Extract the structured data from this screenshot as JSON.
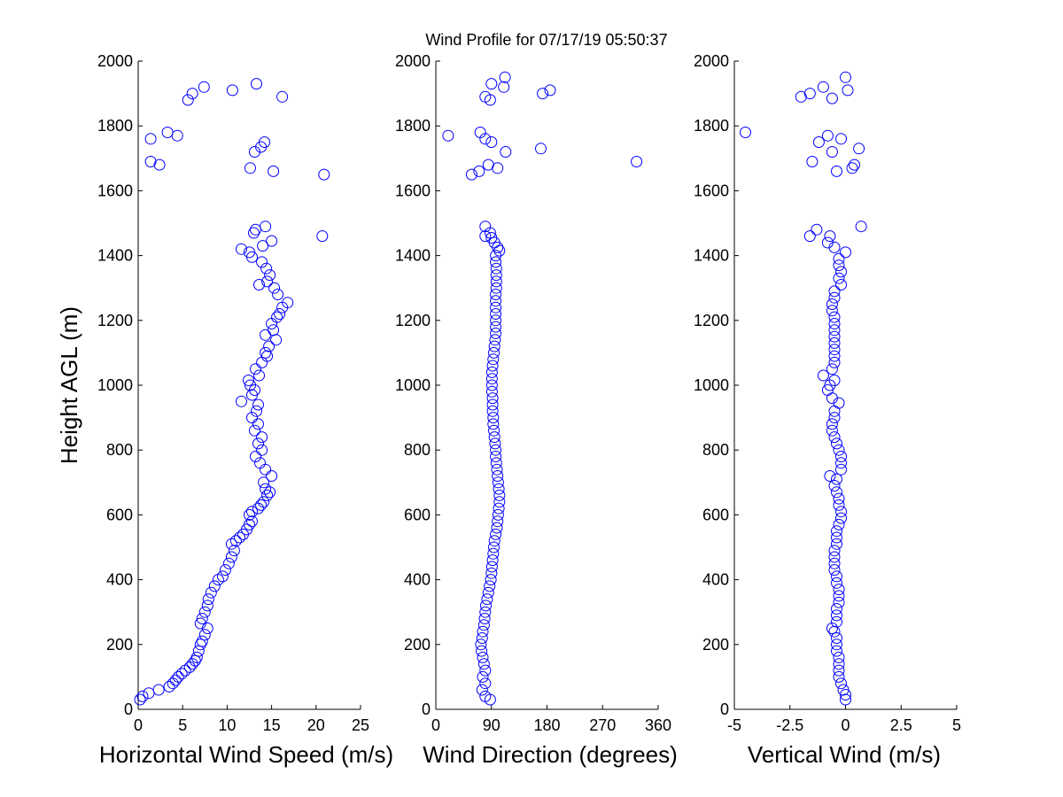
{
  "figure": {
    "title": "Wind Profile for  07/17/19 05:50:37"
  },
  "chart_data": [
    {
      "type": "scatter",
      "xlabel": "Horizontal Wind Speed (m/s)",
      "ylabel": "Height AGL (m)",
      "xlim": [
        0,
        25
      ],
      "ylim": [
        0,
        2000
      ],
      "xticks": [
        "0",
        "5",
        "10",
        "15",
        "20",
        "25"
      ],
      "xtick_values": [
        0,
        5,
        10,
        15,
        20,
        25
      ],
      "yticks": [
        "0",
        "200",
        "400",
        "600",
        "800",
        "1000",
        "1200",
        "1400",
        "1600",
        "1800",
        "2000"
      ],
      "ytick_values": [
        0,
        200,
        400,
        600,
        800,
        1000,
        1200,
        1400,
        1600,
        1800,
        2000
      ],
      "marker": "circle",
      "color": "#0000ff",
      "grid": false,
      "points": [
        [
          0.2,
          30
        ],
        [
          0.5,
          40
        ],
        [
          1.2,
          50
        ],
        [
          2.3,
          60
        ],
        [
          3.5,
          70
        ],
        [
          3.9,
          80
        ],
        [
          4.2,
          90
        ],
        [
          4.5,
          100
        ],
        [
          4.9,
          110
        ],
        [
          5.3,
          120
        ],
        [
          5.8,
          130
        ],
        [
          6.1,
          140
        ],
        [
          6.4,
          150
        ],
        [
          6.6,
          160
        ],
        [
          6.8,
          180
        ],
        [
          7.0,
          200
        ],
        [
          7.2,
          210
        ],
        [
          7.5,
          230
        ],
        [
          7.8,
          250
        ],
        [
          7.0,
          265
        ],
        [
          7.2,
          280
        ],
        [
          7.5,
          300
        ],
        [
          7.8,
          320
        ],
        [
          7.9,
          340
        ],
        [
          8.2,
          360
        ],
        [
          8.6,
          380
        ],
        [
          9.0,
          400
        ],
        [
          9.5,
          410
        ],
        [
          9.8,
          430
        ],
        [
          10.2,
          450
        ],
        [
          10.5,
          470
        ],
        [
          10.8,
          490
        ],
        [
          10.5,
          510
        ],
        [
          11.0,
          520
        ],
        [
          11.4,
          530
        ],
        [
          11.8,
          540
        ],
        [
          12.2,
          555
        ],
        [
          12.5,
          570
        ],
        [
          12.8,
          580
        ],
        [
          12.5,
          600
        ],
        [
          12.8,
          610
        ],
        [
          13.5,
          620
        ],
        [
          13.8,
          630
        ],
        [
          14.1,
          640
        ],
        [
          14.5,
          660
        ],
        [
          14.8,
          670
        ],
        [
          14.3,
          680
        ],
        [
          14.1,
          700
        ],
        [
          15.0,
          720
        ],
        [
          14.3,
          740
        ],
        [
          13.7,
          760
        ],
        [
          13.2,
          780
        ],
        [
          13.9,
          800
        ],
        [
          13.5,
          820
        ],
        [
          13.9,
          840
        ],
        [
          13.1,
          860
        ],
        [
          13.5,
          880
        ],
        [
          12.8,
          900
        ],
        [
          13.3,
          920
        ],
        [
          13.5,
          940
        ],
        [
          11.6,
          950
        ],
        [
          12.8,
          970
        ],
        [
          13.1,
          985
        ],
        [
          12.6,
          1000
        ],
        [
          12.4,
          1015
        ],
        [
          13.6,
          1030
        ],
        [
          13.2,
          1050
        ],
        [
          13.9,
          1070
        ],
        [
          14.5,
          1090
        ],
        [
          14.3,
          1100
        ],
        [
          14.7,
          1120
        ],
        [
          15.5,
          1140
        ],
        [
          14.3,
          1155
        ],
        [
          15.2,
          1170
        ],
        [
          15.0,
          1190
        ],
        [
          15.6,
          1210
        ],
        [
          15.9,
          1220
        ],
        [
          16.2,
          1240
        ],
        [
          16.8,
          1255
        ],
        [
          15.7,
          1280
        ],
        [
          15.3,
          1300
        ],
        [
          13.6,
          1310
        ],
        [
          14.5,
          1320
        ],
        [
          14.8,
          1340
        ],
        [
          14.4,
          1360
        ],
        [
          13.9,
          1380
        ],
        [
          12.8,
          1395
        ],
        [
          12.5,
          1410
        ],
        [
          11.6,
          1420
        ],
        [
          14.0,
          1430
        ],
        [
          15.0,
          1445
        ],
        [
          20.7,
          1460
        ],
        [
          13.0,
          1470
        ],
        [
          13.2,
          1480
        ],
        [
          14.3,
          1490
        ],
        [
          20.9,
          1650
        ],
        [
          15.2,
          1660
        ],
        [
          12.6,
          1670
        ],
        [
          1.4,
          1690
        ],
        [
          2.4,
          1680
        ],
        [
          13.1,
          1720
        ],
        [
          13.8,
          1735
        ],
        [
          14.2,
          1750
        ],
        [
          1.4,
          1760
        ],
        [
          4.4,
          1770
        ],
        [
          3.3,
          1780
        ],
        [
          5.6,
          1880
        ],
        [
          6.1,
          1900
        ],
        [
          10.6,
          1910
        ],
        [
          16.2,
          1890
        ],
        [
          7.4,
          1920
        ],
        [
          13.3,
          1930
        ]
      ]
    },
    {
      "type": "scatter",
      "xlabel": "Wind Direction (degrees)",
      "ylabel": "",
      "xlim": [
        0,
        360
      ],
      "ylim": [
        0,
        2000
      ],
      "xticks": [
        "0",
        "90",
        "180",
        "270",
        "360"
      ],
      "xtick_values": [
        0,
        90,
        180,
        270,
        360
      ],
      "yticks": [
        "0",
        "200",
        "400",
        "600",
        "800",
        "1000",
        "1200",
        "1400",
        "1600",
        "1800",
        "2000"
      ],
      "ytick_values": [
        0,
        200,
        400,
        600,
        800,
        1000,
        1200,
        1400,
        1600,
        1800,
        2000
      ],
      "marker": "circle",
      "color": "#0000ff",
      "grid": false,
      "points": [
        [
          88,
          30
        ],
        [
          80,
          40
        ],
        [
          75,
          60
        ],
        [
          80,
          80
        ],
        [
          76,
          100
        ],
        [
          80,
          120
        ],
        [
          78,
          140
        ],
        [
          76,
          160
        ],
        [
          74,
          180
        ],
        [
          73,
          200
        ],
        [
          75,
          220
        ],
        [
          76,
          240
        ],
        [
          78,
          260
        ],
        [
          79,
          280
        ],
        [
          80,
          300
        ],
        [
          81,
          320
        ],
        [
          83,
          340
        ],
        [
          85,
          360
        ],
        [
          87,
          380
        ],
        [
          89,
          400
        ],
        [
          90,
          420
        ],
        [
          91,
          440
        ],
        [
          92,
          460
        ],
        [
          93,
          480
        ],
        [
          94,
          500
        ],
        [
          95,
          520
        ],
        [
          97,
          540
        ],
        [
          99,
          560
        ],
        [
          100,
          580
        ],
        [
          101,
          600
        ],
        [
          102,
          620
        ],
        [
          103,
          640
        ],
        [
          103,
          660
        ],
        [
          102,
          680
        ],
        [
          101,
          700
        ],
        [
          100,
          720
        ],
        [
          99,
          740
        ],
        [
          98,
          760
        ],
        [
          97,
          780
        ],
        [
          97,
          800
        ],
        [
          96,
          820
        ],
        [
          95,
          840
        ],
        [
          94,
          860
        ],
        [
          93,
          880
        ],
        [
          93,
          900
        ],
        [
          92,
          920
        ],
        [
          92,
          940
        ],
        [
          92,
          960
        ],
        [
          91,
          980
        ],
        [
          91,
          1000
        ],
        [
          91,
          1020
        ],
        [
          91,
          1040
        ],
        [
          92,
          1060
        ],
        [
          93,
          1080
        ],
        [
          94,
          1100
        ],
        [
          95,
          1120
        ],
        [
          96,
          1140
        ],
        [
          97,
          1160
        ],
        [
          97,
          1180
        ],
        [
          97,
          1200
        ],
        [
          97,
          1220
        ],
        [
          97,
          1240
        ],
        [
          97,
          1260
        ],
        [
          97,
          1280
        ],
        [
          98,
          1300
        ],
        [
          98,
          1320
        ],
        [
          98,
          1340
        ],
        [
          98,
          1360
        ],
        [
          97,
          1380
        ],
        [
          97,
          1400
        ],
        [
          103,
          1415
        ],
        [
          100,
          1425
        ],
        [
          95,
          1440
        ],
        [
          90,
          1455
        ],
        [
          80,
          1460
        ],
        [
          88,
          1470
        ],
        [
          80,
          1490
        ],
        [
          58,
          1650
        ],
        [
          70,
          1660
        ],
        [
          100,
          1670
        ],
        [
          85,
          1680
        ],
        [
          325,
          1690
        ],
        [
          113,
          1720
        ],
        [
          170,
          1730
        ],
        [
          90,
          1750
        ],
        [
          80,
          1760
        ],
        [
          20,
          1770
        ],
        [
          72,
          1780
        ],
        [
          80,
          1890
        ],
        [
          88,
          1880
        ],
        [
          173,
          1900
        ],
        [
          185,
          1910
        ],
        [
          110,
          1920
        ],
        [
          90,
          1930
        ],
        [
          112,
          1950
        ]
      ]
    },
    {
      "type": "scatter",
      "xlabel": "Vertical Wind (m/s)",
      "ylabel": "",
      "xlim": [
        -5,
        5
      ],
      "ylim": [
        0,
        2000
      ],
      "xticks": [
        "-5",
        "-2.5",
        "0",
        "2.5",
        "5"
      ],
      "xtick_values": [
        -5,
        -2.5,
        0,
        2.5,
        5
      ],
      "yticks": [
        "0",
        "200",
        "400",
        "600",
        "800",
        "1000",
        "1200",
        "1400",
        "1600",
        "1800",
        "2000"
      ],
      "ytick_values": [
        0,
        200,
        400,
        600,
        800,
        1000,
        1200,
        1400,
        1600,
        1800,
        2000
      ],
      "marker": "circle",
      "color": "#0000ff",
      "grid": false,
      "points": [
        [
          0.0,
          30
        ],
        [
          0.0,
          45
        ],
        [
          -0.1,
          60
        ],
        [
          -0.2,
          80
        ],
        [
          -0.3,
          100
        ],
        [
          -0.3,
          120
        ],
        [
          -0.3,
          140
        ],
        [
          -0.3,
          160
        ],
        [
          -0.4,
          180
        ],
        [
          -0.4,
          200
        ],
        [
          -0.4,
          220
        ],
        [
          -0.5,
          240
        ],
        [
          -0.6,
          250
        ],
        [
          -0.4,
          270
        ],
        [
          -0.4,
          290
        ],
        [
          -0.4,
          310
        ],
        [
          -0.3,
          330
        ],
        [
          -0.3,
          350
        ],
        [
          -0.3,
          370
        ],
        [
          -0.4,
          390
        ],
        [
          -0.4,
          410
        ],
        [
          -0.5,
          430
        ],
        [
          -0.5,
          450
        ],
        [
          -0.5,
          470
        ],
        [
          -0.5,
          490
        ],
        [
          -0.4,
          510
        ],
        [
          -0.4,
          530
        ],
        [
          -0.4,
          550
        ],
        [
          -0.3,
          570
        ],
        [
          -0.2,
          590
        ],
        [
          -0.2,
          610
        ],
        [
          -0.3,
          630
        ],
        [
          -0.3,
          650
        ],
        [
          -0.4,
          670
        ],
        [
          -0.5,
          690
        ],
        [
          -0.4,
          710
        ],
        [
          -0.7,
          720
        ],
        [
          -0.2,
          740
        ],
        [
          -0.2,
          760
        ],
        [
          -0.2,
          780
        ],
        [
          -0.3,
          800
        ],
        [
          -0.4,
          820
        ],
        [
          -0.5,
          840
        ],
        [
          -0.6,
          860
        ],
        [
          -0.6,
          880
        ],
        [
          -0.5,
          900
        ],
        [
          -0.5,
          920
        ],
        [
          -0.3,
          945
        ],
        [
          -0.6,
          960
        ],
        [
          -0.8,
          985
        ],
        [
          -0.7,
          1000
        ],
        [
          -0.5,
          1015
        ],
        [
          -1.0,
          1030
        ],
        [
          -0.6,
          1050
        ],
        [
          -0.5,
          1070
        ],
        [
          -0.5,
          1090
        ],
        [
          -0.5,
          1110
        ],
        [
          -0.5,
          1130
        ],
        [
          -0.5,
          1150
        ],
        [
          -0.5,
          1170
        ],
        [
          -0.5,
          1190
        ],
        [
          -0.5,
          1210
        ],
        [
          -0.6,
          1230
        ],
        [
          -0.6,
          1250
        ],
        [
          -0.5,
          1270
        ],
        [
          -0.5,
          1290
        ],
        [
          -0.2,
          1310
        ],
        [
          -0.3,
          1330
        ],
        [
          -0.2,
          1350
        ],
        [
          -0.3,
          1370
        ],
        [
          -0.3,
          1390
        ],
        [
          0.0,
          1410
        ],
        [
          -0.5,
          1425
        ],
        [
          -0.8,
          1440
        ],
        [
          -0.7,
          1460
        ],
        [
          -1.6,
          1460
        ],
        [
          -1.3,
          1480
        ],
        [
          0.7,
          1490
        ],
        [
          -0.4,
          1660
        ],
        [
          0.3,
          1670
        ],
        [
          0.4,
          1680
        ],
        [
          -1.5,
          1690
        ],
        [
          0.6,
          1730
        ],
        [
          -0.6,
          1720
        ],
        [
          -1.2,
          1750
        ],
        [
          -0.2,
          1760
        ],
        [
          -0.8,
          1770
        ],
        [
          -4.5,
          1780
        ],
        [
          -2.0,
          1890
        ],
        [
          -0.6,
          1885
        ],
        [
          -1.6,
          1900
        ],
        [
          0.1,
          1910
        ],
        [
          -1.0,
          1920
        ],
        [
          0.0,
          1950
        ]
      ]
    }
  ]
}
